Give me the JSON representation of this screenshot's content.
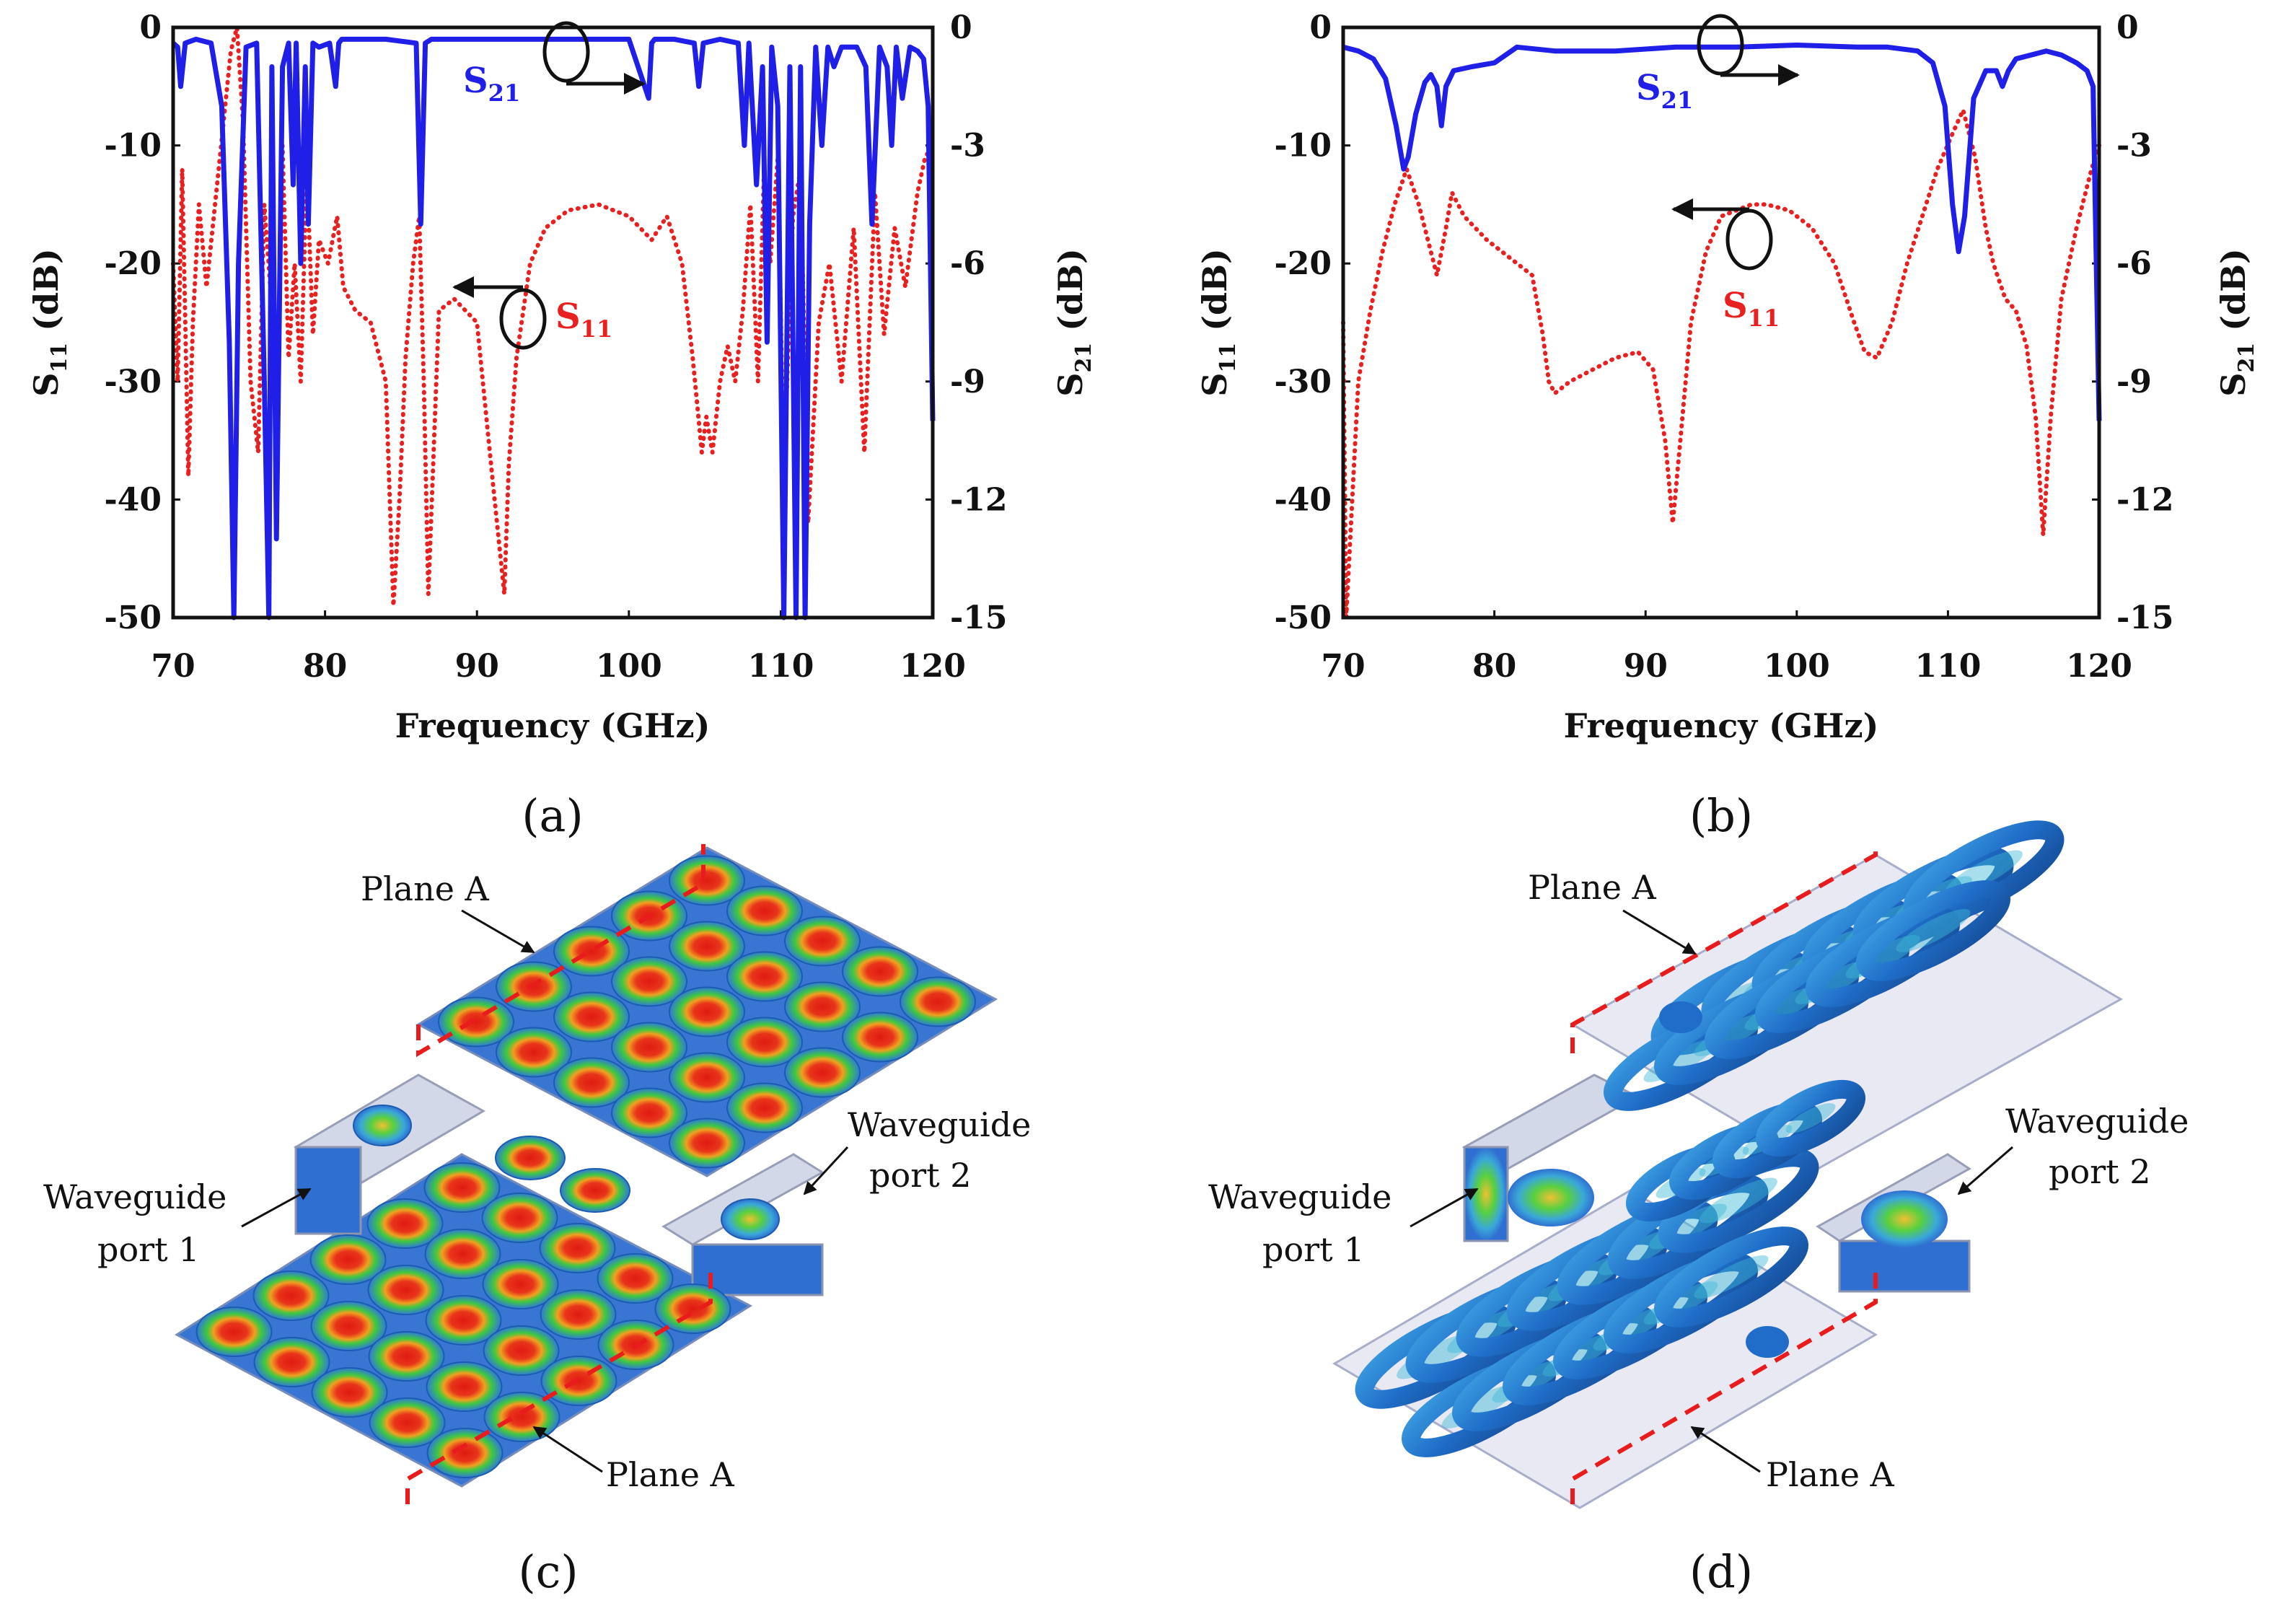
{
  "colors": {
    "s21": "#1f1fe8",
    "s11": "#e8201f",
    "axis": "#111111",
    "plane": "#e81c1c",
    "field_low": "#2f6fd1",
    "field_high": "#e02010",
    "field_mid": "#3fc93f",
    "box": "#c8cce0"
  },
  "chart_data": [
    {
      "id": "a",
      "type": "line",
      "panel_label": "(a)",
      "xlabel": "Frequency (GHz)",
      "ylabel_left": "S11 (dB)",
      "ylabel_left_main": "S",
      "ylabel_left_sub": "11",
      "ylabel_left_unit": " (dB)",
      "ylabel_right": "S21 (dB)",
      "ylabel_right_main": "S",
      "ylabel_right_sub": "21",
      "ylabel_right_unit": " (dB)",
      "xlim": [
        70,
        120
      ],
      "ylim_left": [
        -50,
        0
      ],
      "ylim_right": [
        -15,
        0
      ],
      "x_ticks": [
        "70",
        "80",
        "90",
        "100",
        "110",
        "120"
      ],
      "y_left_ticks": [
        "0",
        "-10",
        "-20",
        "-30",
        "-40",
        "-50"
      ],
      "y_right_ticks": [
        "0",
        "-3",
        "-6",
        "-9",
        "-12",
        "-15"
      ],
      "s21_label_main": "S",
      "s21_label_sub": "21",
      "s11_label_main": "S",
      "s11_label_sub": "11",
      "series": [
        {
          "name": "S21",
          "axis": "right",
          "style": "solid",
          "x": [
            70,
            70.3,
            70.5,
            70.8,
            71.5,
            72.5,
            73.2,
            73.7,
            74,
            74.3,
            74.8,
            75.5,
            76,
            76.3,
            76.5,
            76.8,
            77.2,
            77.6,
            77.9,
            78.1,
            78.4,
            78.7,
            78.9,
            79.2,
            79.6,
            80.3,
            80.7,
            80.9,
            81.1,
            82,
            84,
            86,
            86.3,
            86.6,
            87,
            90,
            95,
            100,
            101.3,
            101.5,
            101.7,
            103,
            104.3,
            104.6,
            104.9,
            106,
            107.2,
            107.6,
            107.9,
            108.4,
            108.8,
            109.1,
            109.4,
            109.8,
            110.2,
            110.6,
            111,
            111.3,
            111.6,
            111.9,
            112.3,
            112.7,
            113.1,
            113.5,
            114,
            115,
            115.6,
            116,
            116.5,
            117,
            117.3,
            117.6,
            118,
            118.5,
            119,
            119.4,
            119.7,
            120
          ],
          "y": [
            -0.4,
            -0.5,
            -1.5,
            -0.4,
            -0.3,
            -0.4,
            -2,
            -8,
            -15,
            -6,
            -0.5,
            -0.4,
            -9,
            -15,
            -1,
            -13,
            -1,
            -0.4,
            -4,
            -0.4,
            -6,
            -1,
            -5,
            -0.4,
            -0.5,
            -0.4,
            -1.5,
            -0.4,
            -0.3,
            -0.3,
            -0.3,
            -0.4,
            -5,
            -0.4,
            -0.3,
            -0.3,
            -0.3,
            -0.3,
            -1.8,
            -0.4,
            -0.3,
            -0.3,
            -0.4,
            -1.5,
            -0.4,
            -0.3,
            -0.4,
            -3,
            -0.4,
            -4,
            -1,
            -8,
            -0.5,
            -2,
            -15,
            -1,
            -15,
            -1,
            -15,
            -5,
            -0.5,
            -3,
            -0.5,
            -1,
            -0.5,
            -0.5,
            -1,
            -5,
            -0.5,
            -1,
            -3,
            -0.5,
            -1.8,
            -0.5,
            -0.6,
            -0.8,
            -2,
            -10
          ]
        },
        {
          "name": "S11",
          "axis": "left",
          "style": "dotted",
          "x": [
            70,
            70.3,
            70.6,
            71,
            71.3,
            71.7,
            72.2,
            73,
            73.8,
            74.2,
            74.6,
            75.1,
            75.6,
            76,
            76.4,
            76.8,
            77.2,
            77.6,
            78,
            78.4,
            78.8,
            79.2,
            79.6,
            80.2,
            80.8,
            81.2,
            82,
            83,
            84,
            84.5,
            84.9,
            85.3,
            85.8,
            86.2,
            86.5,
            86.8,
            87.5,
            88.5,
            90,
            91,
            91.8,
            92.1,
            92.6,
            93.5,
            94.5,
            96,
            98,
            100,
            101.5,
            102.5,
            103.5,
            104.2,
            104.8,
            105.1,
            105.5,
            106,
            106.5,
            107,
            107.5,
            108,
            108.5,
            108.9,
            109.3,
            109.8,
            110.2,
            110.8,
            111.3,
            111.8,
            112.5,
            113.2,
            114,
            114.8,
            115.5,
            116.2,
            116.8,
            117.5,
            118.2,
            119,
            119.5,
            120
          ],
          "y": [
            -20,
            -30,
            -12,
            -38,
            -25,
            -15,
            -22,
            -12,
            -2,
            0,
            -8,
            -30,
            -36,
            -15,
            -22,
            -36,
            -10,
            -28,
            -20,
            -30,
            -12,
            -26,
            -18,
            -20,
            -16,
            -22,
            -24,
            -25,
            -30,
            -49,
            -40,
            -28,
            -20,
            -16,
            -30,
            -48,
            -24,
            -23,
            -25,
            -38,
            -48,
            -37,
            -28,
            -20,
            -17,
            -15.5,
            -15,
            -16,
            -18,
            -16,
            -20,
            -28,
            -36,
            -33,
            -36,
            -30,
            -27,
            -30,
            -24,
            -15,
            -30,
            -12,
            -20,
            -11,
            -38,
            -16,
            -12,
            -42,
            -25,
            -20,
            -30,
            -17,
            -36,
            -14,
            -26,
            -17,
            -22,
            -14,
            -11,
            -10
          ]
        }
      ]
    },
    {
      "id": "b",
      "type": "line",
      "panel_label": "(b)",
      "xlabel": "Frequency (GHz)",
      "ylabel_left": "S11 (dB)",
      "ylabel_left_main": "S",
      "ylabel_left_sub": "11",
      "ylabel_left_unit": " (dB)",
      "ylabel_right": "S21 (dB)",
      "ylabel_right_main": "S",
      "ylabel_right_sub": "21",
      "ylabel_right_unit": " (dB)",
      "xlim": [
        70,
        120
      ],
      "ylim_left": [
        -50,
        0
      ],
      "ylim_right": [
        -15,
        0
      ],
      "x_ticks": [
        "70",
        "80",
        "90",
        "100",
        "110",
        "120"
      ],
      "y_left_ticks": [
        "0",
        "-10",
        "-20",
        "-30",
        "-40",
        "-50"
      ],
      "y_right_ticks": [
        "0",
        "-3",
        "-6",
        "-9",
        "-12",
        "-15"
      ],
      "s21_label_main": "S",
      "s21_label_sub": "21",
      "s11_label_main": "S",
      "s11_label_sub": "11",
      "series": [
        {
          "name": "S21",
          "axis": "right",
          "style": "solid",
          "x": [
            70,
            71,
            72,
            72.8,
            73.5,
            74,
            74.3,
            74.8,
            75.4,
            75.8,
            76.2,
            76.5,
            76.8,
            77.3,
            78.5,
            80,
            81.5,
            84,
            88,
            92,
            96,
            100,
            104,
            106,
            108,
            109,
            109.8,
            110.3,
            110.7,
            111.1,
            111.7,
            112.5,
            113.2,
            113.6,
            114,
            114.5,
            115.5,
            116.5,
            117.5,
            118.5,
            119.2,
            119.6,
            120
          ],
          "y": [
            -0.5,
            -0.6,
            -0.8,
            -1.3,
            -2.5,
            -3.6,
            -3.3,
            -2.2,
            -1.4,
            -1.2,
            -1.5,
            -2.5,
            -1.5,
            -1.1,
            -1,
            -0.9,
            -0.5,
            -0.6,
            -0.6,
            -0.5,
            -0.5,
            -0.45,
            -0.5,
            -0.5,
            -0.6,
            -0.9,
            -2,
            -4.5,
            -5.7,
            -4.8,
            -1.8,
            -1.1,
            -1.1,
            -1.5,
            -1.1,
            -0.8,
            -0.7,
            -0.6,
            -0.7,
            -0.9,
            -1.1,
            -1.5,
            -10
          ]
        },
        {
          "name": "S11",
          "axis": "left",
          "style": "dotted",
          "x": [
            70,
            70.2,
            70.6,
            71,
            71.8,
            72.6,
            73.4,
            74.2,
            75,
            75.6,
            76.2,
            76.8,
            77.2,
            78,
            79.5,
            81,
            82.5,
            83.2,
            83.6,
            84,
            85,
            86.5,
            88,
            89.5,
            90.5,
            91.3,
            91.8,
            92.3,
            93,
            94,
            95,
            96,
            97,
            98,
            99.5,
            101,
            102.5,
            103.8,
            104.5,
            105.3,
            106.3,
            107.3,
            108.3,
            109.3,
            110.3,
            111,
            111.8,
            112.5,
            113,
            113.8,
            114.5,
            115.2,
            115.8,
            116.3,
            116.8,
            117.5,
            118.5,
            119.5,
            120
          ],
          "y": [
            -25,
            -50,
            -40,
            -30,
            -24,
            -19,
            -15,
            -12,
            -15,
            -18,
            -21,
            -17,
            -14,
            -16,
            -18,
            -19.5,
            -21,
            -26,
            -30,
            -31,
            -30,
            -29,
            -28,
            -27.5,
            -29,
            -35,
            -42,
            -35,
            -25,
            -19,
            -16,
            -15.5,
            -15,
            -15,
            -15.5,
            -17,
            -20,
            -25,
            -27.5,
            -28,
            -25,
            -20,
            -16,
            -12,
            -9,
            -7,
            -11,
            -17,
            -20,
            -23,
            -24,
            -27,
            -33,
            -43,
            -33,
            -23,
            -17,
            -12,
            -10
          ]
        }
      ]
    }
  ],
  "annotations": {
    "panel_c": "(c)",
    "panel_d": "(d)",
    "plane_a": "Plane A",
    "wg_port1_line1": "Waveguide",
    "wg_port1_line2": "port 1",
    "wg_port2_line1": "Waveguide",
    "wg_port2_line2": "port 2"
  }
}
